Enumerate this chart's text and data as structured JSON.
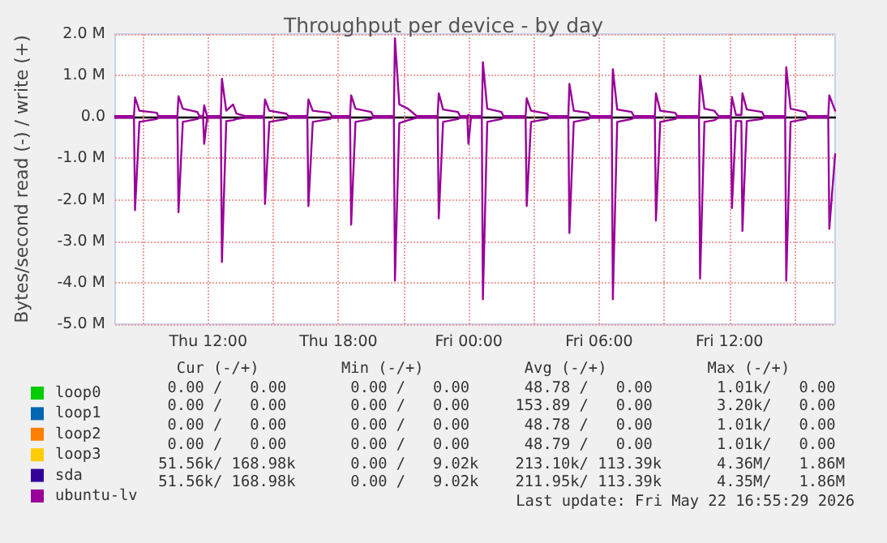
{
  "chart_data": {
    "type": "line",
    "title": "Throughput per device - by day",
    "ylabel": "Bytes/second read (-) / write (+)",
    "xlim": [
      "2026-05-21T07:43",
      "2026-05-22T16:52"
    ],
    "xticks": [
      {
        "value": "2026-05-21T09:00",
        "label": null
      },
      {
        "value": "2026-05-21T12:00",
        "label": "Thu 12:00"
      },
      {
        "value": "2026-05-21T15:00",
        "label": null
      },
      {
        "value": "2026-05-21T18:00",
        "label": "Thu 18:00"
      },
      {
        "value": "2026-05-21T21:00",
        "label": null
      },
      {
        "value": "2026-05-22T00:00",
        "label": "Fri 00:00"
      },
      {
        "value": "2026-05-22T03:00",
        "label": null
      },
      {
        "value": "2026-05-22T06:00",
        "label": "Fri 06:00"
      },
      {
        "value": "2026-05-22T09:00",
        "label": null
      },
      {
        "value": "2026-05-22T12:00",
        "label": "Fri 12:00"
      },
      {
        "value": "2026-05-22T15:00",
        "label": null
      }
    ],
    "ylim": [
      -5,
      2
    ],
    "yticks": [
      {
        "value": -5,
        "label": "-5.0 M"
      },
      {
        "value": -4,
        "label": "-4.0 M"
      },
      {
        "value": -3,
        "label": "-3.0 M"
      },
      {
        "value": -2,
        "label": "-2.0 M"
      },
      {
        "value": -1,
        "label": "-1.0 M"
      },
      {
        "value": 0,
        "label": "0.0"
      },
      {
        "value": 1,
        "label": "1.0 M"
      },
      {
        "value": 2,
        "label": "2.0 M"
      }
    ],
    "grid": true,
    "legend": "bottom left",
    "x": [
      "2026-05-21T07:43",
      "2026-05-21T08:35",
      "2026-05-21T08:38",
      "2026-05-21T08:50",
      "2026-05-21T09:38",
      "2026-05-21T09:42",
      "2026-05-21T10:35",
      "2026-05-21T10:38",
      "2026-05-21T10:50",
      "2026-05-21T11:30",
      "2026-05-21T11:36",
      "2026-05-21T11:46",
      "2026-05-21T11:49",
      "2026-05-21T11:57",
      "2026-05-21T12:35",
      "2026-05-21T12:38",
      "2026-05-21T12:50",
      "2026-05-21T13:09",
      "2026-05-21T13:18",
      "2026-05-21T13:42",
      "2026-05-21T14:34",
      "2026-05-21T14:37",
      "2026-05-21T14:49",
      "2026-05-21T15:36",
      "2026-05-21T15:42",
      "2026-05-21T16:34",
      "2026-05-21T16:37",
      "2026-05-21T16:49",
      "2026-05-21T17:36",
      "2026-05-21T17:42",
      "2026-05-21T18:32",
      "2026-05-21T18:35",
      "2026-05-21T18:47",
      "2026-05-21T19:30",
      "2026-05-21T19:36",
      "2026-05-21T20:33",
      "2026-05-21T20:36",
      "2026-05-21T20:48",
      "2026-05-21T21:12",
      "2026-05-21T21:36",
      "2026-05-21T22:34",
      "2026-05-21T22:37",
      "2026-05-21T22:49",
      "2026-05-21T23:30",
      "2026-05-21T23:36",
      "2026-05-21T23:56",
      "2026-05-21T23:59",
      "2026-05-22T00:06",
      "2026-05-22T00:36",
      "2026-05-22T00:39",
      "2026-05-22T00:51",
      "2026-05-22T01:30",
      "2026-05-22T01:36",
      "2026-05-22T02:37",
      "2026-05-22T02:40",
      "2026-05-22T02:52",
      "2026-05-22T03:36",
      "2026-05-22T03:42",
      "2026-05-22T04:35",
      "2026-05-22T04:38",
      "2026-05-22T04:50",
      "2026-05-22T05:30",
      "2026-05-22T05:36",
      "2026-05-22T06:35",
      "2026-05-22T06:38",
      "2026-05-22T06:50",
      "2026-05-22T07:30",
      "2026-05-22T07:36",
      "2026-05-22T08:34",
      "2026-05-22T08:37",
      "2026-05-22T08:49",
      "2026-05-22T09:30",
      "2026-05-22T09:36",
      "2026-05-22T10:36",
      "2026-05-22T10:39",
      "2026-05-22T10:51",
      "2026-05-22T11:18",
      "2026-05-22T11:30",
      "2026-05-22T12:04",
      "2026-05-22T12:07",
      "2026-05-22T12:18",
      "2026-05-22T12:33",
      "2026-05-22T12:36",
      "2026-05-22T12:48",
      "2026-05-22T13:30",
      "2026-05-22T13:36",
      "2026-05-22T14:34",
      "2026-05-22T14:37",
      "2026-05-22T14:49",
      "2026-05-22T15:30",
      "2026-05-22T15:36",
      "2026-05-22T16:33",
      "2026-05-22T16:36",
      "2026-05-22T16:52"
    ],
    "series": [
      {
        "name": "loop0",
        "color": "#00cc00",
        "values": [
          null,
          null,
          null,
          null,
          null,
          null,
          null,
          null,
          null,
          null,
          null,
          null,
          null,
          null,
          null,
          null,
          null,
          null,
          null,
          null,
          null,
          null,
          null,
          null,
          null,
          null,
          null,
          null,
          null,
          null,
          null,
          null,
          null,
          null,
          null,
          null,
          null,
          null,
          null,
          null,
          null,
          null,
          null,
          null,
          null,
          null,
          null,
          null,
          null,
          null,
          null,
          null,
          null,
          null,
          null,
          null,
          null,
          null,
          null,
          null,
          null,
          null,
          null,
          null,
          null,
          null,
          null,
          null,
          null,
          null,
          null,
          null,
          null,
          null,
          null,
          null,
          null,
          null,
          null,
          null,
          null,
          null,
          null,
          null,
          null,
          null,
          null,
          null,
          null,
          null,
          null,
          null,
          null,
          null
        ]
      },
      {
        "name": "loop1",
        "color": "#0066b3",
        "values": [
          null,
          null,
          null,
          null,
          null,
          null,
          null,
          null,
          null,
          null,
          null,
          null,
          null,
          null,
          null,
          null,
          null,
          null,
          null,
          null,
          null,
          null,
          null,
          null,
          null,
          null,
          null,
          null,
          null,
          null,
          null,
          null,
          null,
          null,
          null,
          null,
          null,
          null,
          null,
          null,
          null,
          null,
          null,
          null,
          null,
          null,
          null,
          null,
          null,
          null,
          null,
          null,
          null,
          null,
          null,
          null,
          null,
          null,
          null,
          null,
          null,
          null,
          null,
          null,
          null,
          null,
          null,
          null,
          null,
          null,
          null,
          null,
          null,
          null,
          null,
          null,
          null,
          null,
          null,
          null,
          null,
          null,
          null,
          null,
          null,
          null,
          null,
          null,
          null,
          null,
          null,
          null,
          null,
          null
        ]
      },
      {
        "name": "loop2",
        "color": "#ff8000",
        "values": [
          null,
          null,
          null,
          null,
          null,
          null,
          null,
          null,
          null,
          null,
          null,
          null,
          null,
          null,
          null,
          null,
          null,
          null,
          null,
          null,
          null,
          null,
          null,
          null,
          null,
          null,
          null,
          null,
          null,
          null,
          null,
          null,
          null,
          null,
          null,
          null,
          null,
          null,
          null,
          null,
          null,
          null,
          null,
          null,
          null,
          null,
          null,
          null,
          null,
          null,
          null,
          null,
          null,
          null,
          null,
          null,
          null,
          null,
          null,
          null,
          null,
          null,
          null,
          null,
          null,
          null,
          null,
          null,
          null,
          null,
          null,
          null,
          null,
          null,
          null,
          null,
          null,
          null,
          null,
          null,
          null,
          null,
          null,
          null,
          null,
          null,
          null,
          null,
          null,
          null,
          null,
          null,
          null,
          null
        ]
      },
      {
        "name": "loop3",
        "color": "#ffcc00",
        "values": [
          null,
          null,
          null,
          null,
          null,
          null,
          null,
          null,
          null,
          null,
          null,
          null,
          null,
          null,
          null,
          null,
          null,
          null,
          null,
          null,
          null,
          null,
          null,
          null,
          null,
          null,
          null,
          null,
          null,
          null,
          null,
          null,
          null,
          null,
          null,
          null,
          null,
          null,
          null,
          null,
          null,
          null,
          null,
          null,
          null,
          null,
          null,
          null,
          null,
          null,
          null,
          null,
          null,
          null,
          null,
          null,
          null,
          null,
          null,
          null,
          null,
          null,
          null,
          null,
          null,
          null,
          null,
          null,
          null,
          null,
          null,
          null,
          null,
          null,
          null,
          null,
          null,
          null,
          null,
          null,
          null,
          null,
          null,
          null,
          null,
          null,
          null,
          null,
          null,
          null,
          null,
          null,
          null,
          null
        ]
      },
      {
        "name": "sda",
        "color": "#330099",
        "values": [
          null,
          null,
          null,
          null,
          null,
          null,
          null,
          null,
          null,
          null,
          null,
          null,
          null,
          null,
          null,
          null,
          null,
          null,
          null,
          null,
          null,
          null,
          null,
          null,
          null,
          null,
          null,
          null,
          null,
          null,
          null,
          null,
          null,
          null,
          null,
          null,
          null,
          null,
          null,
          null,
          null,
          null,
          null,
          null,
          null,
          null,
          null,
          null,
          null,
          null,
          null,
          null,
          null,
          null,
          null,
          null,
          null,
          null,
          null,
          null,
          null,
          null,
          null,
          null,
          null,
          null,
          null,
          null,
          null,
          null,
          null,
          null,
          null,
          null,
          null,
          null,
          null,
          null,
          null,
          null,
          null,
          null,
          null,
          null,
          null,
          null,
          null,
          null,
          null,
          null,
          null,
          null,
          null,
          null
        ]
      },
      {
        "name": "ubuntu-lv",
        "color": "#990099",
        "values": [
          0.02,
          0.02,
          0.47,
          0.15,
          0.1,
          0.02,
          0.02,
          0.5,
          0.2,
          0.12,
          0.02,
          0.02,
          0.28,
          0.02,
          0.02,
          0.92,
          0.15,
          0.3,
          0.08,
          0.02,
          0.02,
          0.42,
          0.15,
          0.08,
          0.02,
          0.02,
          0.42,
          0.15,
          0.1,
          0.02,
          0.02,
          0.52,
          0.2,
          0.12,
          0.02,
          0.02,
          1.9,
          0.3,
          0.2,
          0.02,
          0.02,
          0.57,
          0.18,
          0.12,
          0.02,
          0.02,
          0.05,
          0.02,
          0.02,
          1.32,
          0.2,
          0.12,
          0.02,
          0.02,
          0.45,
          0.15,
          0.08,
          0.02,
          0.02,
          0.8,
          0.15,
          0.1,
          0.02,
          0.02,
          1.15,
          0.18,
          0.12,
          0.02,
          0.02,
          0.57,
          0.15,
          0.1,
          0.02,
          0.02,
          1.0,
          0.2,
          0.15,
          0.02,
          0.02,
          0.48,
          0.05,
          0.05,
          0.57,
          0.18,
          0.12,
          0.02,
          0.02,
          1.2,
          0.2,
          0.12,
          0.02,
          0.02,
          0.52,
          0.15
        ]
      },
      {
        "color": "#990099",
        "values": [
          -0.02,
          -0.02,
          -2.25,
          -0.12,
          -0.05,
          -0.02,
          -0.02,
          -2.3,
          -0.12,
          -0.05,
          -0.02,
          -0.02,
          -0.65,
          -0.02,
          -0.02,
          -3.5,
          -0.1,
          -0.08,
          -0.05,
          -0.02,
          -0.02,
          -2.1,
          -0.12,
          -0.05,
          -0.02,
          -0.02,
          -2.15,
          -0.12,
          -0.05,
          -0.02,
          -0.02,
          -2.6,
          -0.12,
          -0.05,
          -0.02,
          -0.02,
          -3.95,
          -0.15,
          -0.08,
          -0.02,
          -0.02,
          -2.45,
          -0.12,
          -0.05,
          -0.02,
          -0.02,
          -0.65,
          -0.02,
          -0.02,
          -4.4,
          -0.12,
          -0.05,
          -0.02,
          -0.02,
          -2.15,
          -0.12,
          -0.05,
          -0.02,
          -0.02,
          -2.8,
          -0.12,
          -0.05,
          -0.02,
          -0.02,
          -4.4,
          -0.12,
          -0.05,
          -0.02,
          -0.02,
          -2.5,
          -0.12,
          -0.05,
          -0.02,
          -0.02,
          -3.9,
          -0.12,
          -0.08,
          -0.02,
          -0.02,
          -2.2,
          -0.1,
          -0.1,
          -2.75,
          -0.1,
          -0.05,
          -0.02,
          -0.02,
          -3.95,
          -0.12,
          -0.05,
          -0.02,
          -0.02,
          -2.7,
          -0.9
        ]
      }
    ],
    "annotations": [
      "   Cur (-/+)         Min (-/+)           Avg (-/+)           Max (-/+)",
      "  0.00 /   0.00       0.00 /   0.00      48.78 /   0.00       1.01k/   0.00",
      "  0.00 /   0.00       0.00 /   0.00     153.89 /   0.00       3.20k/   0.00",
      "  0.00 /   0.00       0.00 /   0.00      48.78 /   0.00       1.01k/   0.00",
      "  0.00 /   0.00       0.00 /   0.00      48.79 /   0.00       1.01k/   0.00",
      " 51.56k/ 168.98k      0.00 /   9.02k    213.10k/ 113.39k      4.36M/   1.86M",
      " 51.56k/ 168.98k      0.00 /   9.02k    211.95k/ 113.39k      4.35M/   1.86M",
      "Last update: Fri May 22 16:55:29 2026"
    ]
  }
}
